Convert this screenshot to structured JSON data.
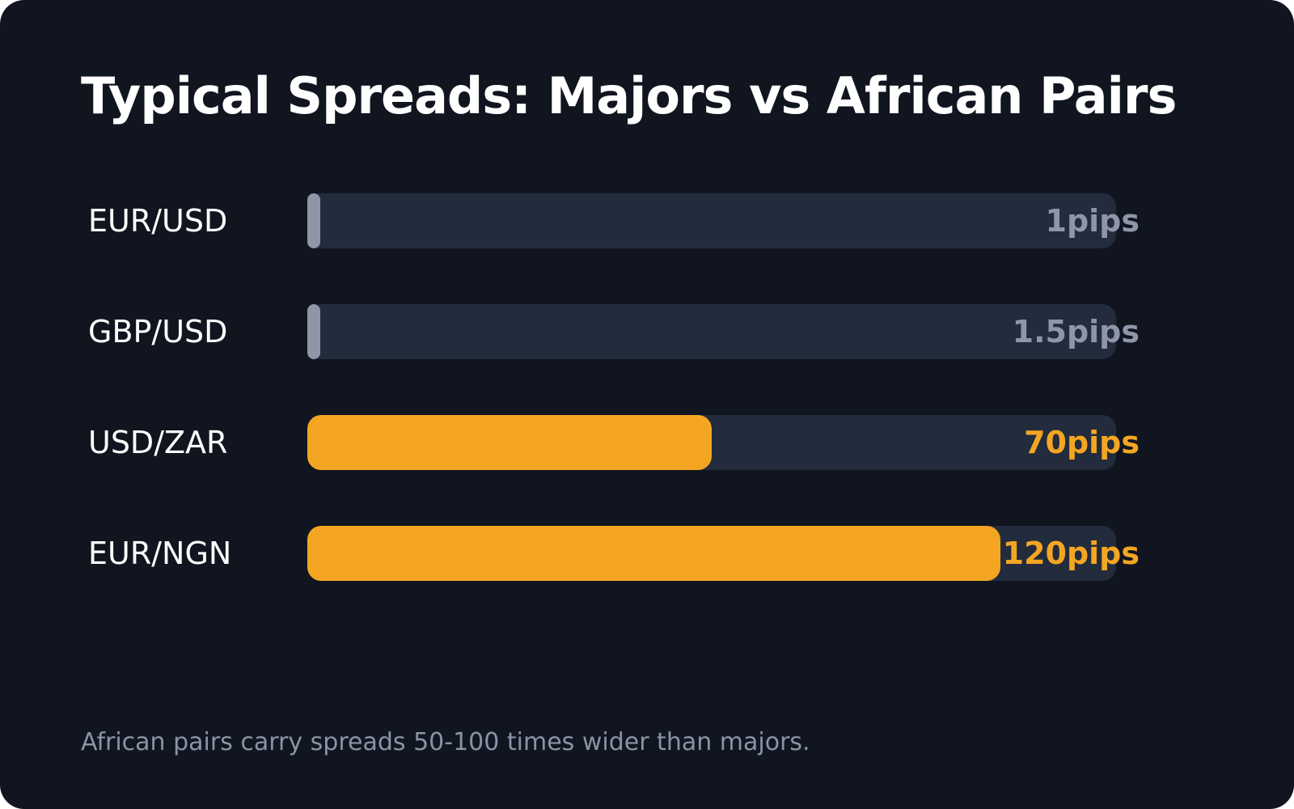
{
  "title": "Typical Spreads: Majors vs African Pairs",
  "footnote": "African pairs carry spreads 50-100 times wider than majors.",
  "colors": {
    "background": "#11151f",
    "track": "#232c3d",
    "major": "#8e96a8",
    "african": "#f4a623"
  },
  "chart_data": {
    "type": "bar",
    "orientation": "horizontal",
    "title": "Typical Spreads: Majors vs African Pairs",
    "categories": [
      "EUR/USD",
      "GBP/USD",
      "USD/ZAR",
      "EUR/NGN"
    ],
    "values": [
      1,
      1.5,
      70,
      120
    ],
    "value_labels": [
      "1pips",
      "1.5pips",
      "70pips",
      "120pips"
    ],
    "groups": [
      "major",
      "major",
      "african",
      "african"
    ],
    "xlim": [
      0,
      140
    ],
    "grid": false
  }
}
